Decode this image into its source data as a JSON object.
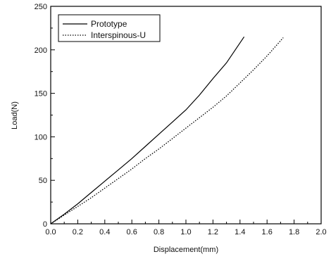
{
  "chart_data": {
    "type": "line",
    "title": "",
    "xlabel": "Displacement(mm)",
    "ylabel": "Load(N)",
    "xlim": [
      0.0,
      2.0
    ],
    "ylim": [
      0,
      250
    ],
    "xticks": [
      0.0,
      0.2,
      0.4,
      0.6,
      0.8,
      1.0,
      1.2,
      1.4,
      1.6,
      1.8,
      2.0
    ],
    "xtick_labels": [
      "0.0",
      "0.2",
      "0.4",
      "0.6",
      "0.8",
      "1.0",
      "1.2",
      "1.4",
      "1.6",
      "1.8",
      "2.0"
    ],
    "yticks": [
      0,
      50,
      100,
      150,
      200,
      250
    ],
    "ytick_labels": [
      "0",
      "50",
      "100",
      "150",
      "200",
      "250"
    ],
    "grid": false,
    "legend_position": "top-left",
    "series": [
      {
        "name": "Prototype",
        "style": "solid",
        "color": "#000000",
        "x": [
          0.0,
          0.1,
          0.2,
          0.3,
          0.4,
          0.5,
          0.6,
          0.7,
          0.8,
          0.9,
          1.0,
          1.1,
          1.2,
          1.3,
          1.43
        ],
        "y": [
          0,
          11,
          23,
          36,
          49,
          62,
          75,
          89,
          103,
          117,
          131,
          148,
          167,
          185,
          215
        ]
      },
      {
        "name": "Interspinous-U",
        "style": "dotted",
        "color": "#000000",
        "x": [
          0.0,
          0.1,
          0.2,
          0.3,
          0.4,
          0.5,
          0.6,
          0.7,
          0.8,
          0.9,
          1.0,
          1.1,
          1.2,
          1.3,
          1.4,
          1.5,
          1.6,
          1.72
        ],
        "y": [
          0,
          10,
          20,
          30,
          41,
          52,
          63,
          75,
          86,
          98,
          110,
          122,
          134,
          147,
          162,
          177,
          193,
          214
        ]
      }
    ]
  }
}
